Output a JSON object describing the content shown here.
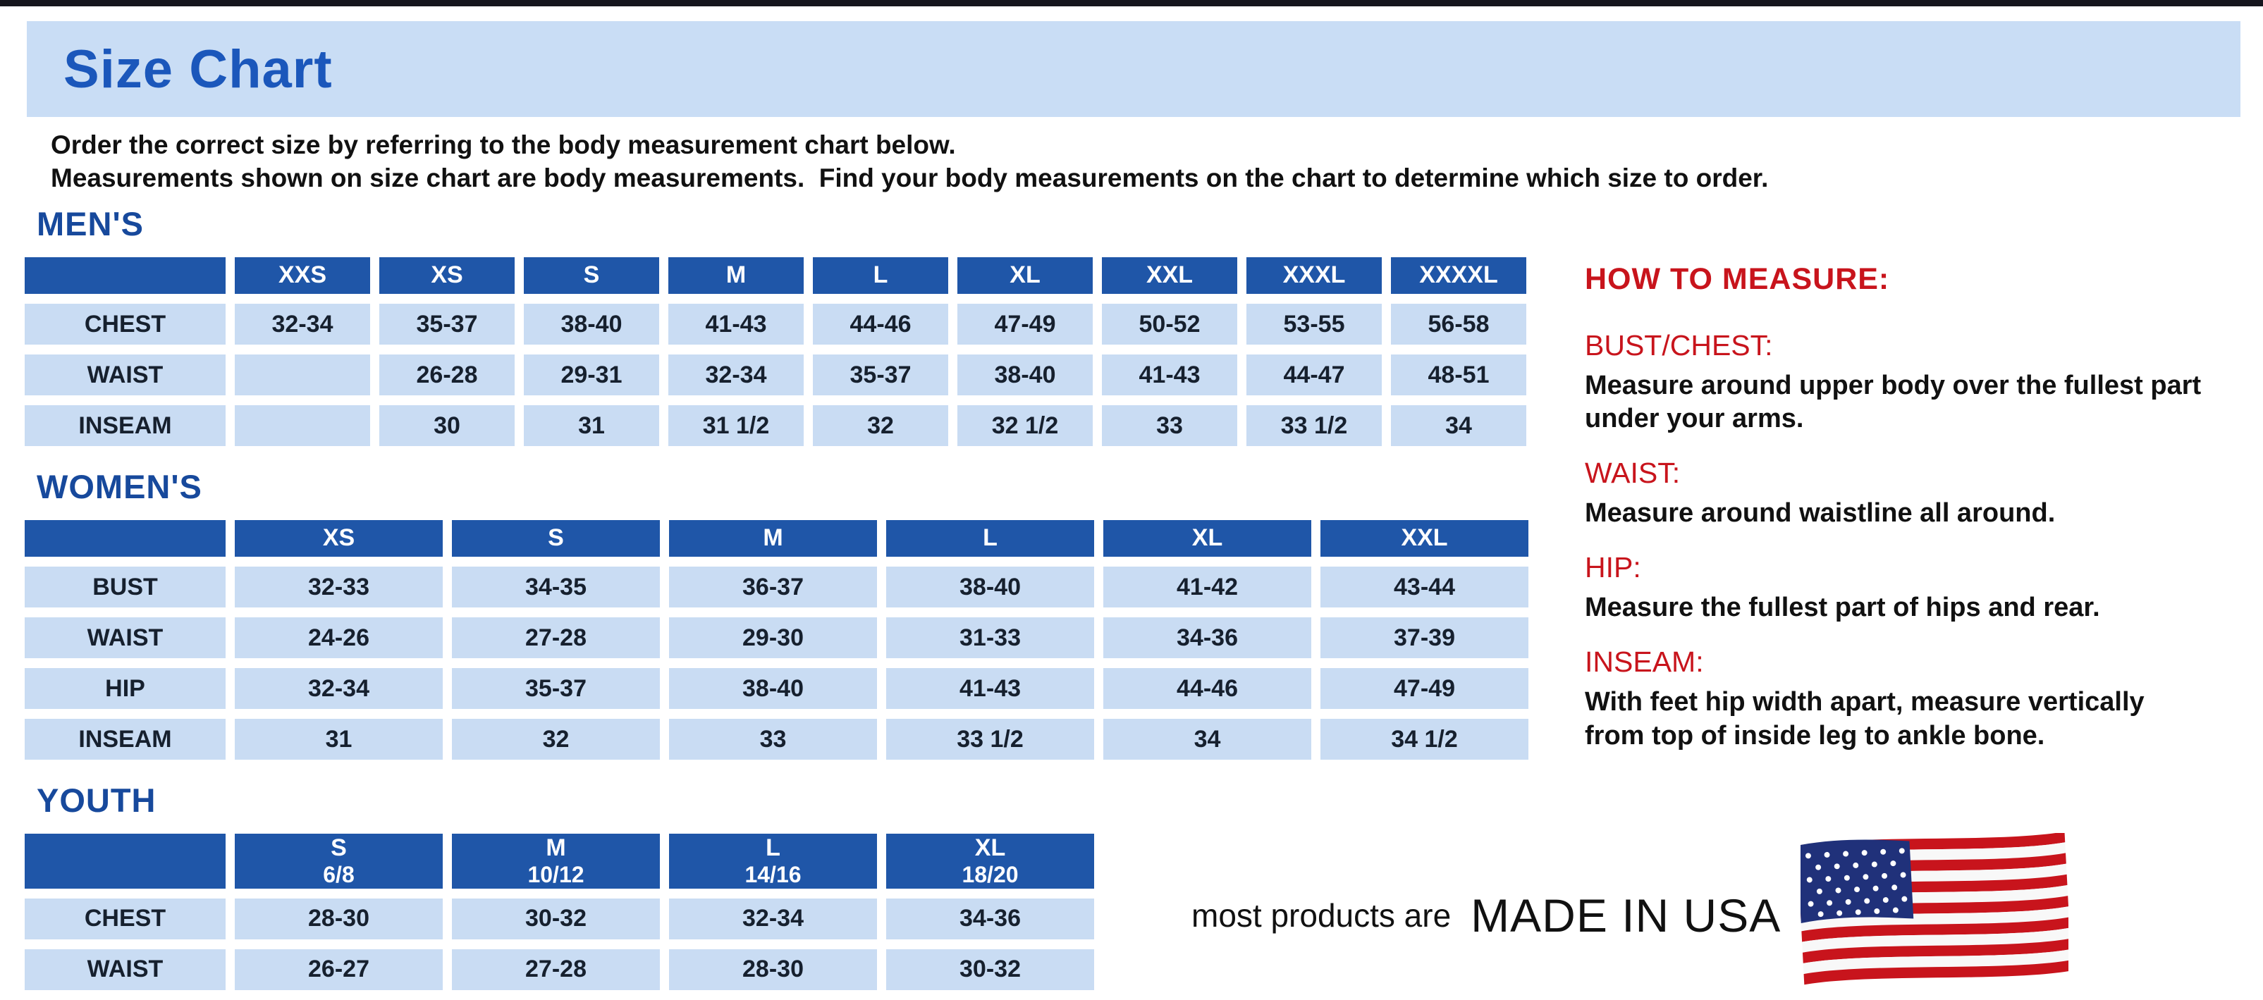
{
  "page": {
    "title": "Size Chart",
    "intro_line1": "Order the correct size by referring to the body measurement chart below.",
    "intro_line2": "Measurements shown on size chart are body measurements.  Find your body measurements on the chart to determine which size to order."
  },
  "size_tables": [
    {
      "heading": "MEN'S",
      "columns": [
        {
          "label": "XXS"
        },
        {
          "label": "XS"
        },
        {
          "label": "S"
        },
        {
          "label": "M"
        },
        {
          "label": "L"
        },
        {
          "label": "XL"
        },
        {
          "label": "XXL"
        },
        {
          "label": "XXXL"
        },
        {
          "label": "XXXXL"
        }
      ],
      "rows": [
        {
          "label": "CHEST",
          "values": [
            "32-34",
            "35-37",
            "38-40",
            "41-43",
            "44-46",
            "47-49",
            "50-52",
            "53-55",
            "56-58"
          ]
        },
        {
          "label": "WAIST",
          "values": [
            "",
            "26-28",
            "29-31",
            "32-34",
            "35-37",
            "38-40",
            "41-43",
            "44-47",
            "48-51"
          ]
        },
        {
          "label": "INSEAM",
          "values": [
            "",
            "30",
            "31",
            "31 1/2",
            "32",
            "32 1/2",
            "33",
            "33 1/2",
            "34"
          ]
        }
      ]
    },
    {
      "heading": "WOMEN'S",
      "columns": [
        {
          "label": "XS"
        },
        {
          "label": "S"
        },
        {
          "label": "M"
        },
        {
          "label": "L"
        },
        {
          "label": "XL"
        },
        {
          "label": "XXL"
        }
      ],
      "rows": [
        {
          "label": "BUST",
          "values": [
            "32-33",
            "34-35",
            "36-37",
            "38-40",
            "41-42",
            "43-44"
          ]
        },
        {
          "label": "WAIST",
          "values": [
            "24-26",
            "27-28",
            "29-30",
            "31-33",
            "34-36",
            "37-39"
          ]
        },
        {
          "label": "HIP",
          "values": [
            "32-34",
            "35-37",
            "38-40",
            "41-43",
            "44-46",
            "47-49"
          ]
        },
        {
          "label": "INSEAM",
          "values": [
            "31",
            "32",
            "33",
            "33 1/2",
            "34",
            "34 1/2"
          ]
        }
      ]
    },
    {
      "heading": "YOUTH",
      "columns": [
        {
          "label": "S",
          "sub": "6/8"
        },
        {
          "label": "M",
          "sub": "10/12"
        },
        {
          "label": "L",
          "sub": "14/16"
        },
        {
          "label": "XL",
          "sub": "18/20"
        }
      ],
      "rows": [
        {
          "label": "CHEST",
          "values": [
            "28-30",
            "30-32",
            "32-34",
            "34-36"
          ]
        },
        {
          "label": "WAIST",
          "values": [
            "26-27",
            "27-28",
            "28-30",
            "30-32"
          ]
        }
      ]
    }
  ],
  "how_to_measure": {
    "heading": "HOW TO MEASURE:",
    "sections": [
      {
        "label": "BUST/CHEST:",
        "text": "Measure around upper body over the fullest part under your arms."
      },
      {
        "label": "WAIST:",
        "text": "Measure around waistline all around."
      },
      {
        "label": "HIP:",
        "text": "Measure the fullest part of hips and rear."
      },
      {
        "label": "INSEAM:",
        "text": "With feet hip width apart, measure vertically from top of inside leg to ankle bone."
      }
    ]
  },
  "footer": {
    "made_in_prefix": "most products are",
    "made_in": "MADE IN USA",
    "flag_icon": "us-flag-icon"
  },
  "colors": {
    "title_band_bg": "#c9ddf5",
    "title_text": "#1b57bb",
    "section_heading": "#17499c",
    "table_header_bg": "#1f56a8",
    "table_header_text": "#ffffff",
    "table_cell_bg": "#c9dcf3",
    "table_cell_text": "#16202e",
    "red_heading": "#c8141c"
  }
}
